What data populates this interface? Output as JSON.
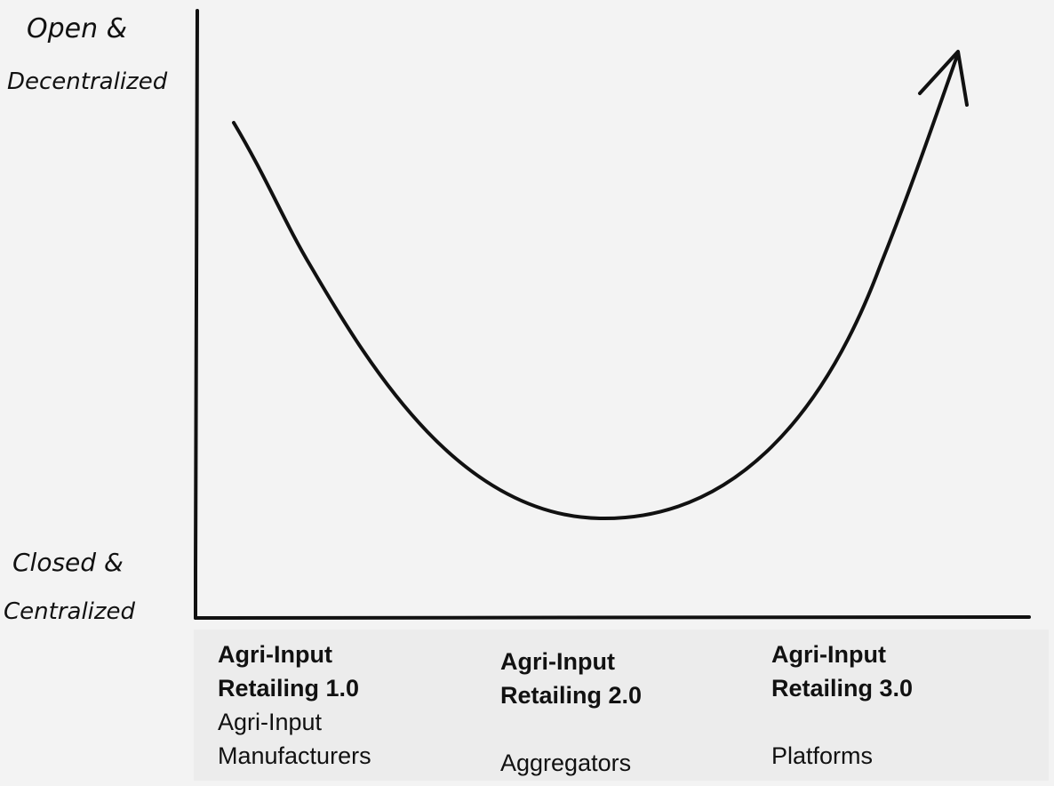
{
  "axis": {
    "y_top_label_line1": "Open &",
    "y_top_label_line2": "Decentralized",
    "y_bottom_label_line1": "Closed &",
    "y_bottom_label_line2": "Centralized"
  },
  "stages": [
    {
      "title_line1": "Agri-Input",
      "title_line2": "Retailing 1.0",
      "desc_line1": "Agri-Input",
      "desc_line2": "Manufacturers"
    },
    {
      "title_line1": "Agri-Input",
      "title_line2": "Retailing 2.0",
      "desc_line1": "Aggregators"
    },
    {
      "title_line1": "Agri-Input",
      "title_line2": "Retailing 3.0",
      "desc_line1": "Platforms"
    }
  ],
  "colors": {
    "background": "#f3f3f3",
    "label_panel": "#ececec",
    "ink": "#111111"
  }
}
